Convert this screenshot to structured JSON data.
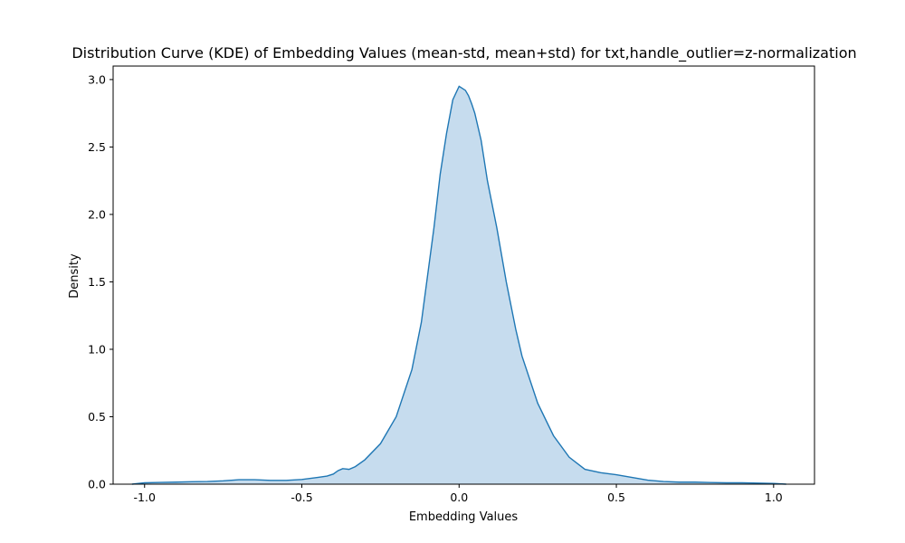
{
  "chart_data": {
    "type": "area",
    "title": "Distribution Curve (KDE) of Embedding Values (mean-std, mean+std) for txt,handle_outlier=z-normalization",
    "xlabel": "Embedding Values",
    "ylabel": "Density",
    "xlim": [
      -1.1,
      1.13
    ],
    "ylim": [
      0,
      3.1
    ],
    "xticks": [
      -1.0,
      -0.5,
      0.0,
      0.5,
      1.0
    ],
    "xtick_labels": [
      "-1.0",
      "-0.5",
      "0.0",
      "0.5",
      "1.0"
    ],
    "yticks": [
      0.0,
      0.5,
      1.0,
      1.5,
      2.0,
      2.5,
      3.0
    ],
    "ytick_labels": [
      "0.0",
      "0.5",
      "1.0",
      "1.5",
      "2.0",
      "2.5",
      "3.0"
    ],
    "grid": false,
    "line_color": "#1f77b4",
    "fill_color": "#c6dcee",
    "series": [
      {
        "x": [
          -1.04,
          -1.0,
          -0.95,
          -0.9,
          -0.85,
          -0.8,
          -0.75,
          -0.7,
          -0.65,
          -0.6,
          -0.55,
          -0.5,
          -0.45,
          -0.42,
          -0.4,
          -0.385,
          -0.37,
          -0.35,
          -0.33,
          -0.3,
          -0.25,
          -0.2,
          -0.15,
          -0.12,
          -0.1,
          -0.08,
          -0.06,
          -0.04,
          -0.02,
          0.0,
          0.01,
          0.02,
          0.03,
          0.04,
          0.05,
          0.07,
          0.09,
          0.12,
          0.15,
          0.18,
          0.2,
          0.25,
          0.3,
          0.35,
          0.4,
          0.45,
          0.5,
          0.55,
          0.6,
          0.65,
          0.7,
          0.75,
          0.8,
          0.85,
          0.9,
          0.95,
          1.0,
          1.04
        ],
        "y": [
          0.0,
          0.01,
          0.013,
          0.015,
          0.018,
          0.02,
          0.025,
          0.033,
          0.033,
          0.028,
          0.028,
          0.035,
          0.05,
          0.06,
          0.075,
          0.1,
          0.115,
          0.11,
          0.13,
          0.18,
          0.3,
          0.5,
          0.85,
          1.2,
          1.55,
          1.9,
          2.3,
          2.6,
          2.85,
          2.95,
          2.935,
          2.92,
          2.88,
          2.82,
          2.75,
          2.55,
          2.25,
          1.9,
          1.5,
          1.15,
          0.95,
          0.6,
          0.36,
          0.2,
          0.11,
          0.085,
          0.07,
          0.05,
          0.03,
          0.02,
          0.015,
          0.015,
          0.012,
          0.01,
          0.01,
          0.008,
          0.005,
          0.0
        ]
      }
    ]
  }
}
